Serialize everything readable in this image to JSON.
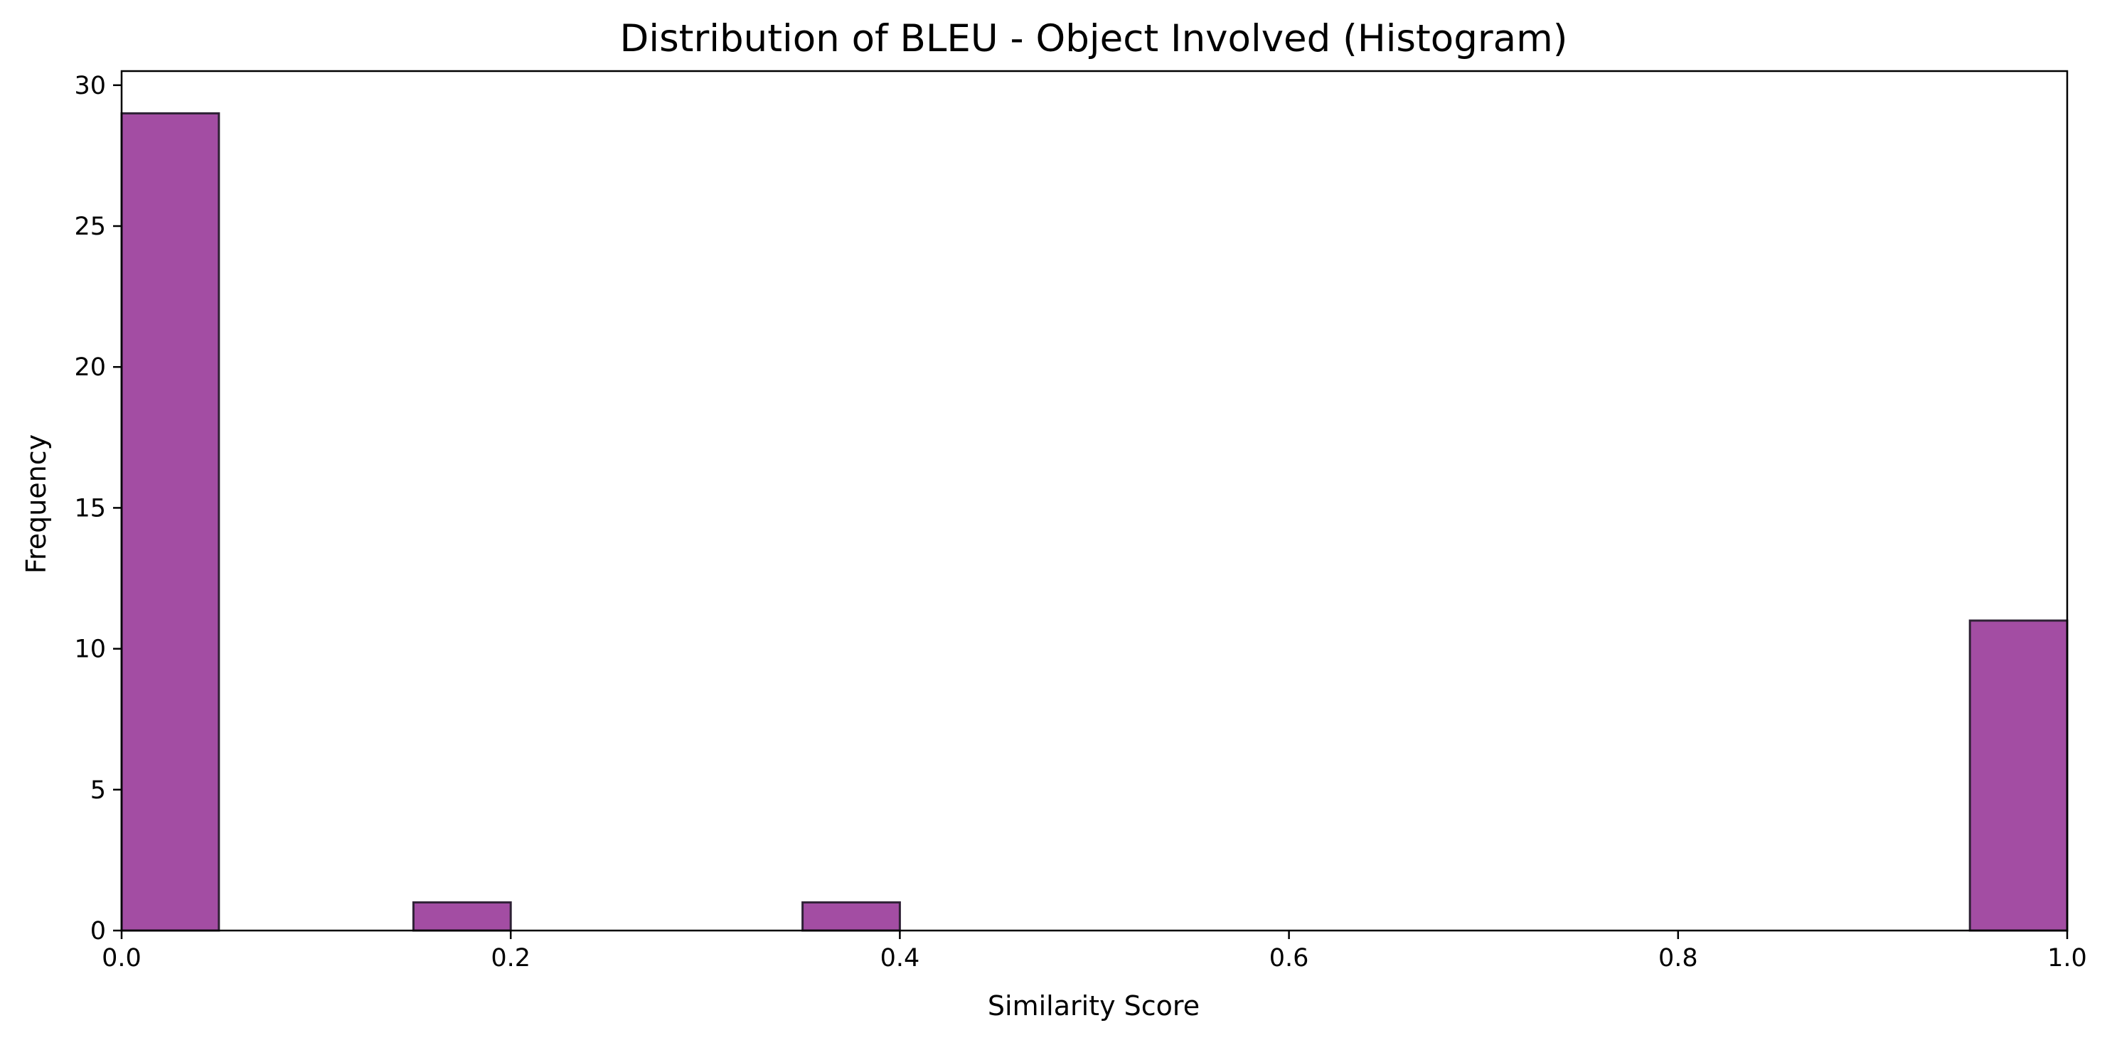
{
  "chart_data": {
    "type": "bar",
    "title": "Distribution of BLEU - Object Involved (Histogram)",
    "xlabel": "Similarity Score",
    "ylabel": "Frequency",
    "xlim": [
      0.0,
      1.0
    ],
    "ylim": [
      0,
      30.5
    ],
    "x_ticks": [
      {
        "value": 0.0,
        "label": "0.0"
      },
      {
        "value": 0.2,
        "label": "0.2"
      },
      {
        "value": 0.4,
        "label": "0.4"
      },
      {
        "value": 0.6,
        "label": "0.6"
      },
      {
        "value": 0.8,
        "label": "0.8"
      },
      {
        "value": 1.0,
        "label": "1.0"
      }
    ],
    "y_ticks": [
      {
        "value": 0,
        "label": "0"
      },
      {
        "value": 5,
        "label": "5"
      },
      {
        "value": 10,
        "label": "10"
      },
      {
        "value": 15,
        "label": "15"
      },
      {
        "value": 20,
        "label": "20"
      },
      {
        "value": 25,
        "label": "25"
      },
      {
        "value": 30,
        "label": "30"
      }
    ],
    "bin_edges": [
      0.0,
      0.05,
      0.1,
      0.15,
      0.2,
      0.25,
      0.3,
      0.35,
      0.4,
      0.45,
      0.5,
      0.55,
      0.6,
      0.65,
      0.7,
      0.75,
      0.8,
      0.85,
      0.9,
      0.95,
      1.0
    ],
    "values": [
      29,
      0,
      0,
      1,
      0,
      0,
      0,
      1,
      0,
      0,
      0,
      0,
      0,
      0,
      0,
      0,
      0,
      0,
      0,
      11
    ],
    "bar_color": "#a34da3",
    "bar_edge_color": "#2f2236",
    "grid": false,
    "legend": "none"
  }
}
